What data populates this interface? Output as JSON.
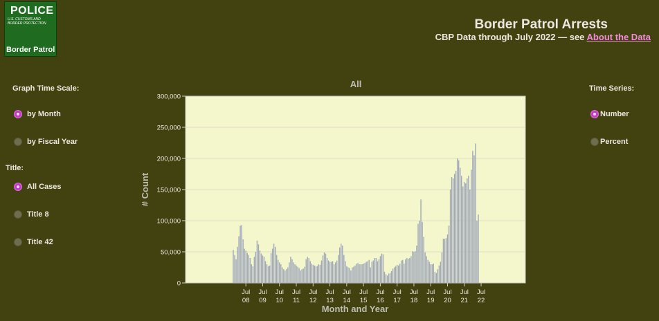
{
  "logo": {
    "line1": "POLICE",
    "line2": "U.S. CUSTOMS AND BORDER PROTECTION",
    "line3": "Border Patrol",
    "color": "#1f6b1f"
  },
  "header": {
    "title": "Border Patrol Arrests",
    "subtitle_prefix": "CBP Data through July 2022 — see ",
    "link_label": "About the Data",
    "link_color": "#f28ad8"
  },
  "controls": {
    "time_scale": {
      "label": "Graph Time Scale:",
      "options": [
        "by Month",
        "by Fiscal Year"
      ],
      "selected": "by Month"
    },
    "title_filter": {
      "label": "Title:",
      "options": [
        "All Cases",
        "Title 8",
        "Title 42"
      ],
      "selected": "All Cases"
    },
    "time_series": {
      "label": "Time Series:",
      "options": [
        "Number",
        "Percent"
      ],
      "selected": "Number"
    }
  },
  "colors": {
    "background": "#424210",
    "plot_background": "#f4f6cc",
    "bar": "#a0a8ba",
    "radio_selected": "#c23bc2"
  },
  "chart_data": {
    "type": "bar",
    "title": "All",
    "xlabel": "Month and Year",
    "ylabel": "# Count",
    "ylim": [
      0,
      300000
    ],
    "yticks": [
      0,
      50000,
      100000,
      150000,
      200000,
      250000,
      300000
    ],
    "ytick_labels": [
      "0",
      "50,000",
      "100,000",
      "150,000",
      "200,000",
      "250,000",
      "300,000"
    ],
    "xtick_labels": [
      {
        "month": "Jul",
        "year": "08"
      },
      {
        "month": "Jul",
        "year": "09"
      },
      {
        "month": "Jul",
        "year": "10"
      },
      {
        "month": "Jul",
        "year": "11"
      },
      {
        "month": "Jul",
        "year": "12"
      },
      {
        "month": "Jul",
        "year": "13"
      },
      {
        "month": "Jul",
        "year": "14"
      },
      {
        "month": "Jul",
        "year": "15"
      },
      {
        "month": "Jul",
        "year": "16"
      },
      {
        "month": "Jul",
        "year": "17"
      },
      {
        "month": "Jul",
        "year": "18"
      },
      {
        "month": "Jul",
        "year": "19"
      },
      {
        "month": "Jul",
        "year": "20"
      },
      {
        "month": "Jul",
        "year": "21"
      },
      {
        "month": "Jul",
        "year": "22"
      }
    ],
    "grid": true,
    "series": [
      {
        "values": [
          53000,
          45000,
          38000,
          58000,
          75000,
          92000,
          93000,
          70000,
          55000,
          52000,
          48000,
          45000,
          40000,
          30000,
          27000,
          42000,
          50000,
          68000,
          62000,
          52000,
          47000,
          44000,
          42000,
          35000,
          30000,
          27000,
          28000,
          48000,
          55000,
          63000,
          58000,
          45000,
          37000,
          33000,
          30000,
          25000,
          22000,
          20000,
          22000,
          25000,
          33000,
          42000,
          38000,
          33000,
          30000,
          28000,
          26000,
          24000,
          20000,
          22000,
          23000,
          26000,
          38000,
          42000,
          40000,
          35000,
          31000,
          29000,
          28000,
          27000,
          27000,
          30000,
          29000,
          36000,
          44000,
          49000,
          47000,
          40000,
          36000,
          34000,
          34000,
          35000,
          30000,
          33000,
          36000,
          45000,
          57000,
          63000,
          60000,
          45000,
          35000,
          27000,
          25000,
          24000,
          20000,
          25000,
          26000,
          28000,
          31000,
          32000,
          30000,
          30000,
          30000,
          31000,
          32000,
          34000,
          35000,
          37000,
          25000,
          34000,
          36000,
          40000,
          40000,
          35000,
          38000,
          43000,
          47000,
          46000,
          18000,
          14000,
          12000,
          15000,
          16000,
          19000,
          23000,
          25000,
          27000,
          29000,
          28000,
          31000,
          36000,
          37000,
          31000,
          38000,
          40000,
          39000,
          40000,
          43000,
          51000,
          50000,
          51000,
          60000,
          95000,
          100000,
          134000,
          98000,
          74000,
          49000,
          43000,
          37000,
          34000,
          30000,
          30000,
          31000,
          18000,
          16000,
          22000,
          28000,
          34000,
          49000,
          71000,
          71000,
          72000,
          78000,
          92000,
          150000,
          170000,
          168000,
          175000,
          180000,
          200000,
          197000,
          185000,
          172000,
          155000,
          162000,
          160000,
          168000,
          172000,
          150000,
          182000,
          212000,
          205000,
          224000,
          100000,
          110000
        ]
      }
    ]
  }
}
